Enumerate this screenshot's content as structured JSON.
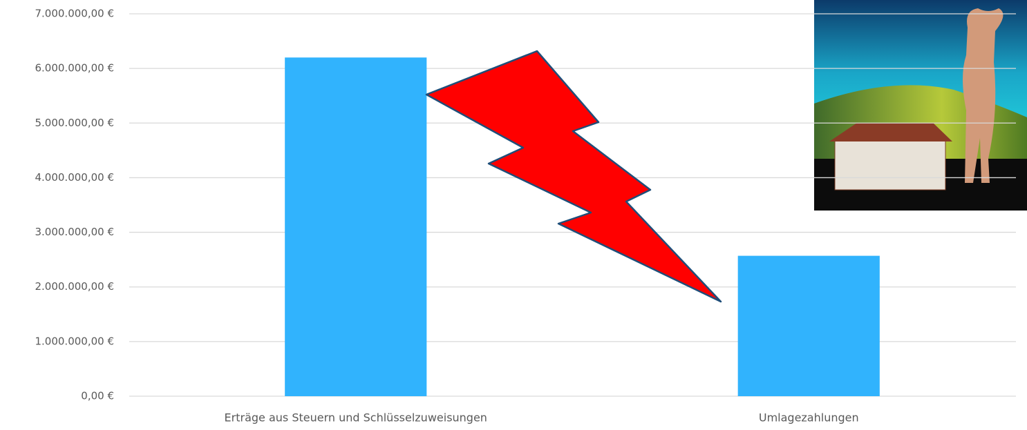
{
  "chart_data": {
    "type": "bar",
    "categories": [
      "Erträge aus Steuern und Schlüsselzuweisungen",
      "Umlagezahlungen"
    ],
    "values": [
      6200000,
      2570000
    ],
    "color": "#31b3fd",
    "ylim": [
      0,
      7000000
    ],
    "yticks": [
      {
        "value": 0,
        "label": "0,00 €"
      },
      {
        "value": 1000000,
        "label": "1.000.000,00 €"
      },
      {
        "value": 2000000,
        "label": "2.000.000,00 €"
      },
      {
        "value": 3000000,
        "label": "3.000.000,00 €"
      },
      {
        "value": 4000000,
        "label": "4.000.000,00 €"
      },
      {
        "value": 5000000,
        "label": "5.000.000,00 €"
      },
      {
        "value": 6000000,
        "label": "6.000.000,00 €"
      },
      {
        "value": 7000000,
        "label": "7.000.000,00 €"
      }
    ],
    "grid": true
  }
}
